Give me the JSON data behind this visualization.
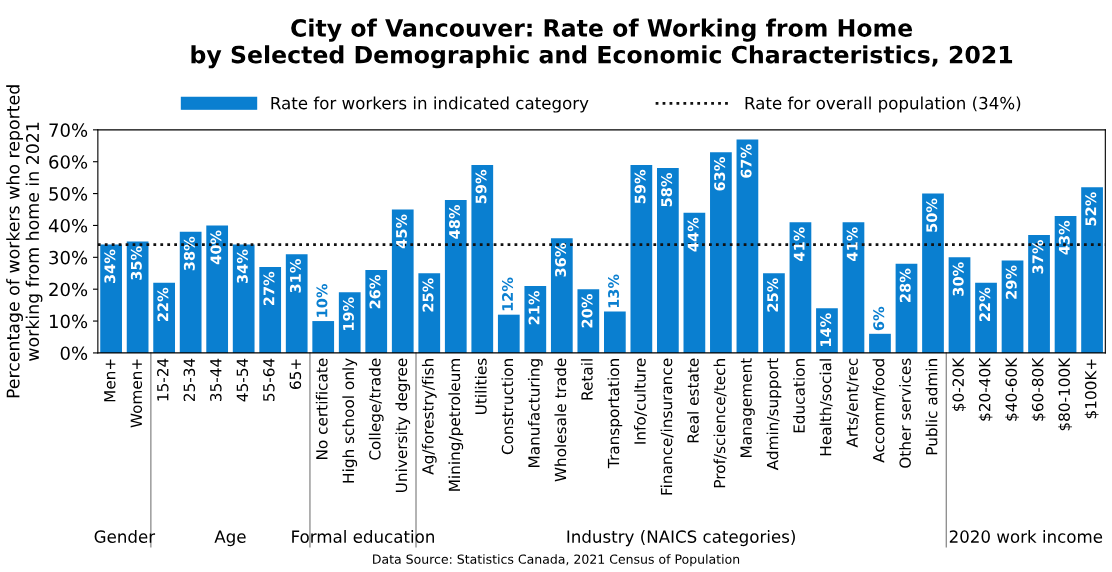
{
  "chart_data": {
    "type": "bar",
    "title": "City of Vancouver: Rate of Working from Home\nby Selected Demographic and Economic Characteristics, 2021",
    "ylabel": "Percentage of workers who reported\nworking from home in 2021",
    "categories": [
      "Men+",
      "Women+",
      "15-24",
      "25-34",
      "35-44",
      "45-54",
      "55-64",
      "65+",
      "No certificate",
      "High school only",
      "College/trade",
      "University degree",
      "Ag/forestry/fish",
      "Mining/petroleum",
      "Utilities",
      "Construction",
      "Manufacturing",
      "Wholesale trade",
      "Retail",
      "Transportation",
      "Info/culture",
      "Finance/insurance",
      "Real estate",
      "Prof/science/tech",
      "Management",
      "Admin/support",
      "Education",
      "Health/social",
      "Arts/ent/rec",
      "Accomm/food",
      "Other services",
      "Public admin",
      "$0-20K",
      "$20-40K",
      "$40-60K",
      "$60-80K",
      "$80-100K",
      "$100K+"
    ],
    "series": [
      {
        "name": "Rate for workers in indicated category",
        "color": "#0a7fd0",
        "values": [
          34,
          35,
          22,
          38,
          40,
          34,
          27,
          31,
          10,
          19,
          26,
          45,
          25,
          48,
          59,
          12,
          21,
          36,
          20,
          13,
          59,
          58,
          44,
          63,
          67,
          25,
          41,
          14,
          41,
          6,
          28,
          50,
          30,
          22,
          29,
          37,
          43,
          52
        ],
        "value_labels": [
          "34%",
          "35%",
          "22%",
          "38%",
          "40%",
          "34%",
          "27%",
          "31%",
          "10%",
          "19%",
          "26%",
          "45%",
          "25%",
          "48%",
          "59%",
          "12%",
          "21%",
          "36%",
          "20%",
          "13%",
          "59%",
          "58%",
          "44%",
          "63%",
          "67%",
          "25%",
          "41%",
          "14%",
          "41%",
          "6%",
          "28%",
          "50%",
          "30%",
          "22%",
          "29%",
          "37%",
          "43%",
          "52%"
        ]
      }
    ],
    "ylim": [
      0,
      70
    ],
    "yticks": [
      {
        "value": 0,
        "label": "0%"
      },
      {
        "value": 10,
        "label": "10%"
      },
      {
        "value": 20,
        "label": "20%"
      },
      {
        "value": 30,
        "label": "30%"
      },
      {
        "value": 40,
        "label": "40%"
      },
      {
        "value": 50,
        "label": "50%"
      },
      {
        "value": 60,
        "label": "60%"
      },
      {
        "value": 70,
        "label": "70%"
      }
    ],
    "ref_lines": [
      {
        "axis": "y",
        "value": 34,
        "label": "Rate for overall population (34%)",
        "color": "#111111",
        "line_style": "dotted"
      }
    ],
    "legend": "top",
    "grid": false,
    "annotations": [
      "Gender",
      "Age",
      "Formal education",
      "Industry (NAICS categories)",
      "2020 work income",
      "Data Source: Statistics Canada, 2021 Census of Population"
    ]
  }
}
